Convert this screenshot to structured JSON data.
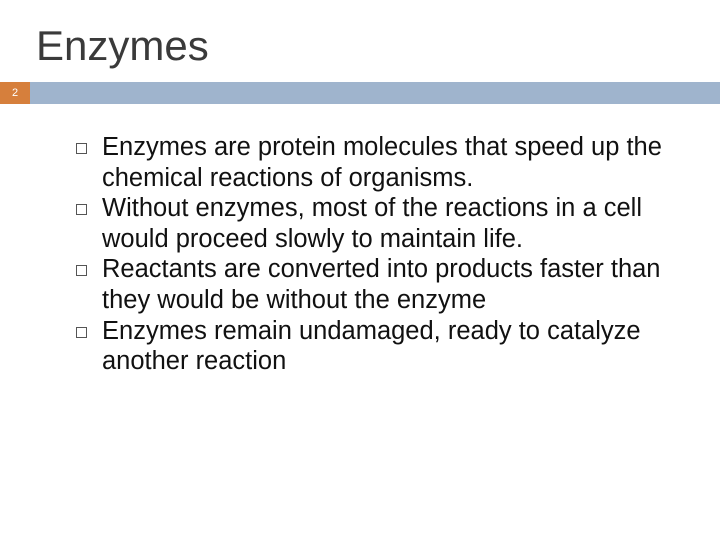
{
  "slide": {
    "title": "Enzymes",
    "page_number": "2",
    "badge_color": "#d67f3c",
    "bar_color": "#9fb4cd",
    "title_color": "#3a3a3a",
    "text_color": "#111111",
    "background_color": "#ffffff",
    "title_fontsize": 42,
    "body_fontsize": 25.5,
    "bullets": [
      "Enzymes are protein molecules that speed up the chemical reactions of organisms.",
      "Without enzymes, most of the reactions in a cell would proceed slowly to maintain life.",
      "Reactants are converted into products faster than they would be without the enzyme",
      "Enzymes remain undamaged, ready to catalyze another reaction"
    ]
  }
}
